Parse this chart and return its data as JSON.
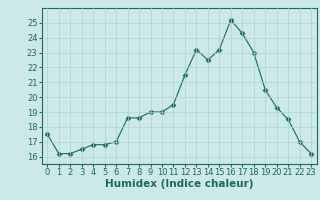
{
  "x": [
    0,
    1,
    2,
    3,
    4,
    5,
    6,
    7,
    8,
    9,
    10,
    11,
    12,
    13,
    14,
    15,
    16,
    17,
    18,
    19,
    20,
    21,
    22,
    23
  ],
  "y": [
    17.5,
    16.2,
    16.2,
    16.5,
    16.8,
    16.8,
    17.0,
    18.6,
    18.6,
    19.0,
    19.0,
    19.5,
    21.5,
    23.2,
    22.5,
    23.2,
    25.2,
    24.3,
    23.0,
    20.5,
    19.3,
    18.5,
    17.0,
    16.2
  ],
  "line_color": "#1a6b5a",
  "marker": "D",
  "marker_size": 2.5,
  "bg_color": "#cce8e8",
  "grid_color": "#aad4d4",
  "xlabel": "Humidex (Indice chaleur)",
  "ylim": [
    15.5,
    26.0
  ],
  "xlim": [
    -0.5,
    23.5
  ],
  "yticks": [
    16,
    17,
    18,
    19,
    20,
    21,
    22,
    23,
    24,
    25
  ],
  "xticks": [
    0,
    1,
    2,
    3,
    4,
    5,
    6,
    7,
    8,
    9,
    10,
    11,
    12,
    13,
    14,
    15,
    16,
    17,
    18,
    19,
    20,
    21,
    22,
    23
  ],
  "tick_fontsize": 6,
  "xlabel_fontsize": 7.5
}
